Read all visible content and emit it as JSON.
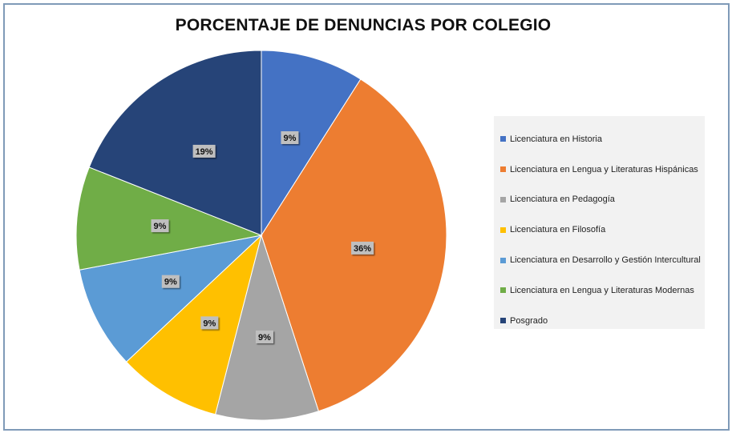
{
  "chart_data": {
    "type": "pie",
    "title": "PORCENTAJE DE DENUNCIAS POR COLEGIO",
    "legend_position": "right",
    "slices": [
      {
        "label": "Licenciatura en Historia",
        "value": 9,
        "display": "9%",
        "color": "#4472c4"
      },
      {
        "label": "Licenciatura en Lengua y Literaturas Hispánicas",
        "value": 36,
        "display": "36%",
        "color": "#ed7d31"
      },
      {
        "label": "Licenciatura en Pedagogía",
        "value": 9,
        "display": "9%",
        "color": "#a5a5a5"
      },
      {
        "label": "Licenciatura en Filosofía",
        "value": 9,
        "display": "9%",
        "color": "#ffc000"
      },
      {
        "label": "Licenciatura en Desarrollo y Gestión Intercultural",
        "value": 9,
        "display": "9%",
        "color": "#5b9bd5"
      },
      {
        "label": "Licenciatura en Lengua y Literaturas Modernas",
        "value": 9,
        "display": "9%",
        "color": "#70ad47"
      },
      {
        "label": "Posgrado",
        "value": 19,
        "display": "19%",
        "color": "#264478"
      }
    ]
  }
}
